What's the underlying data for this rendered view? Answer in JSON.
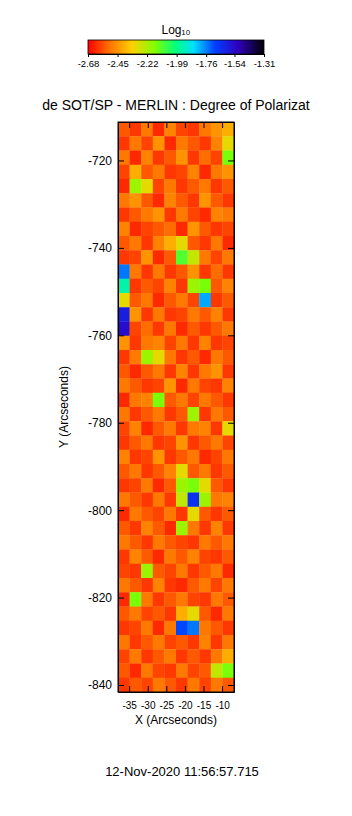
{
  "chart_data": {
    "type": "heatmap",
    "title": "de SOT/SP - MERLIN : Degree of Polarizat",
    "x_label": "X (Arcseconds)",
    "y_label": "Y (Arcseconds)",
    "xlim": [
      -38,
      -6.8
    ],
    "ylim": [
      -841.6,
      -711.2
    ],
    "xticks": [
      -35,
      -30,
      -25,
      -20,
      -15,
      -10
    ],
    "yticks": [
      -840,
      -820,
      -800,
      -780,
      -760,
      -740,
      -720
    ],
    "annotations": [
      "12-Nov-2020 11:56:57.715"
    ],
    "colorbar": {
      "title": "Log₁₀",
      "range": [
        -2.68,
        -1.31
      ],
      "ticks": [
        -2.68,
        -2.45,
        -2.22,
        -1.99,
        -1.76,
        -1.54,
        -1.31
      ]
    },
    "z": [
      [
        -2.55,
        -2.6,
        -2.5,
        -2.62,
        -2.48,
        -2.58,
        -2.6,
        -2.5,
        -2.45,
        -2.4
      ],
      [
        -2.6,
        -2.5,
        -2.58,
        -2.45,
        -2.62,
        -2.5,
        -2.55,
        -2.6,
        -2.48,
        -2.3
      ],
      [
        -2.5,
        -2.62,
        -2.48,
        -2.6,
        -2.55,
        -2.45,
        -2.6,
        -2.52,
        -2.58,
        -2.15
      ],
      [
        -2.58,
        -2.4,
        -2.55,
        -2.5,
        -2.6,
        -2.58,
        -2.48,
        -2.62,
        -2.5,
        -2.45
      ],
      [
        -2.62,
        -2.2,
        -2.3,
        -2.58,
        -2.5,
        -2.6,
        -2.55,
        -2.5,
        -2.6,
        -2.55
      ],
      [
        -2.5,
        -2.45,
        -2.55,
        -2.62,
        -2.48,
        -2.55,
        -2.6,
        -2.45,
        -2.55,
        -2.6
      ],
      [
        -2.6,
        -2.55,
        -2.5,
        -2.45,
        -2.6,
        -2.5,
        -2.58,
        -2.62,
        -2.48,
        -2.5
      ],
      [
        -2.48,
        -2.62,
        -2.58,
        -2.55,
        -2.52,
        -2.62,
        -2.45,
        -2.55,
        -2.6,
        -2.58
      ],
      [
        -2.55,
        -2.5,
        -2.6,
        -2.48,
        -2.4,
        -2.3,
        -2.55,
        -2.6,
        -2.5,
        -2.62
      ],
      [
        -2.6,
        -2.58,
        -2.45,
        -2.62,
        -2.55,
        -2.1,
        -2.25,
        -2.5,
        -2.58,
        -2.5
      ],
      [
        -1.75,
        -2.5,
        -2.6,
        -2.5,
        -2.6,
        -2.55,
        -2.45,
        -2.6,
        -2.52,
        -2.6
      ],
      [
        -1.95,
        -2.6,
        -2.55,
        -2.58,
        -2.48,
        -2.6,
        -2.2,
        -2.15,
        -2.55,
        -2.48
      ],
      [
        -2.3,
        -2.55,
        -2.5,
        -2.62,
        -2.55,
        -2.5,
        -2.58,
        -1.8,
        -2.6,
        -2.55
      ],
      [
        -1.6,
        -2.45,
        -2.6,
        -2.5,
        -2.6,
        -2.58,
        -2.5,
        -2.55,
        -2.48,
        -2.6
      ],
      [
        -1.55,
        -2.58,
        -2.52,
        -2.6,
        -2.5,
        -2.62,
        -2.55,
        -2.6,
        -2.55,
        -2.5
      ],
      [
        -2.45,
        -2.6,
        -2.5,
        -2.48,
        -2.58,
        -2.5,
        -2.6,
        -2.48,
        -2.6,
        -2.58
      ],
      [
        -2.6,
        -2.5,
        -2.2,
        -2.3,
        -2.5,
        -2.6,
        -2.55,
        -2.62,
        -2.5,
        -2.55
      ],
      [
        -2.55,
        -2.62,
        -2.55,
        -2.5,
        -2.6,
        -2.48,
        -2.6,
        -2.5,
        -2.45,
        -2.6
      ],
      [
        -2.5,
        -2.55,
        -2.6,
        -2.58,
        -2.45,
        -2.62,
        -2.5,
        -2.58,
        -2.6,
        -2.48
      ],
      [
        -2.62,
        -2.5,
        -2.48,
        -2.15,
        -2.55,
        -2.5,
        -2.58,
        -2.5,
        -2.55,
        -2.6
      ],
      [
        -2.5,
        -2.6,
        -2.55,
        -2.5,
        -2.6,
        -2.55,
        -2.2,
        -2.6,
        -2.5,
        -2.55
      ],
      [
        -2.58,
        -2.48,
        -2.62,
        -2.55,
        -2.5,
        -2.6,
        -2.5,
        -2.48,
        -2.6,
        -2.3
      ],
      [
        -2.6,
        -2.55,
        -2.5,
        -2.6,
        -2.58,
        -2.45,
        -2.6,
        -2.55,
        -2.5,
        -2.58
      ],
      [
        -2.48,
        -2.6,
        -2.58,
        -2.45,
        -2.6,
        -2.55,
        -2.5,
        -2.62,
        -2.58,
        -2.5
      ],
      [
        -2.55,
        -2.5,
        -2.6,
        -2.55,
        -2.48,
        -2.3,
        -2.55,
        -2.5,
        -2.6,
        -2.55
      ],
      [
        -2.6,
        -2.58,
        -2.5,
        -2.62,
        -2.55,
        -2.2,
        -2.15,
        -2.3,
        -2.55,
        -2.6
      ],
      [
        -2.5,
        -2.55,
        -2.6,
        -2.5,
        -2.6,
        -2.25,
        -1.65,
        -2.2,
        -2.5,
        -2.48
      ],
      [
        -2.62,
        -2.5,
        -2.55,
        -2.58,
        -2.5,
        -2.6,
        -2.3,
        -2.55,
        -2.6,
        -2.55
      ],
      [
        -2.55,
        -2.6,
        -2.48,
        -2.55,
        -2.62,
        -2.2,
        -2.5,
        -2.6,
        -2.48,
        -2.6
      ],
      [
        -2.5,
        -2.55,
        -2.6,
        -2.5,
        -2.55,
        -2.58,
        -2.6,
        -2.5,
        -2.55,
        -2.5
      ],
      [
        -2.6,
        -2.48,
        -2.55,
        -2.62,
        -2.5,
        -2.55,
        -2.48,
        -2.58,
        -2.6,
        -2.55
      ],
      [
        -2.58,
        -2.6,
        -2.2,
        -2.55,
        -2.58,
        -2.5,
        -2.6,
        -2.55,
        -2.5,
        -2.62
      ],
      [
        -2.5,
        -2.55,
        -2.6,
        -2.48,
        -2.6,
        -2.62,
        -2.55,
        -2.5,
        -2.58,
        -2.5
      ],
      [
        -2.62,
        -2.15,
        -2.5,
        -2.6,
        -2.55,
        -2.5,
        -2.58,
        -2.6,
        -2.5,
        -2.55
      ],
      [
        -2.55,
        -2.5,
        -2.58,
        -2.55,
        -2.6,
        -2.4,
        -2.3,
        -2.55,
        -2.62,
        -2.5
      ],
      [
        -2.6,
        -2.58,
        -2.5,
        -2.62,
        -2.5,
        -1.7,
        -1.75,
        -2.5,
        -2.55,
        -2.6
      ],
      [
        -2.5,
        -2.6,
        -2.55,
        -2.5,
        -2.58,
        -2.55,
        -2.6,
        -2.48,
        -2.6,
        -2.5
      ],
      [
        -2.58,
        -2.5,
        -2.6,
        -2.55,
        -2.5,
        -2.6,
        -2.55,
        -2.6,
        -2.5,
        -2.4
      ],
      [
        -2.55,
        -2.62,
        -2.5,
        -2.58,
        -2.6,
        -2.5,
        -2.58,
        -2.55,
        -2.25,
        -2.15
      ],
      [
        -2.6,
        -2.55,
        -2.58,
        -2.5,
        -2.55,
        -2.6,
        -2.5,
        -2.58,
        -2.5,
        -2.55
      ]
    ]
  }
}
